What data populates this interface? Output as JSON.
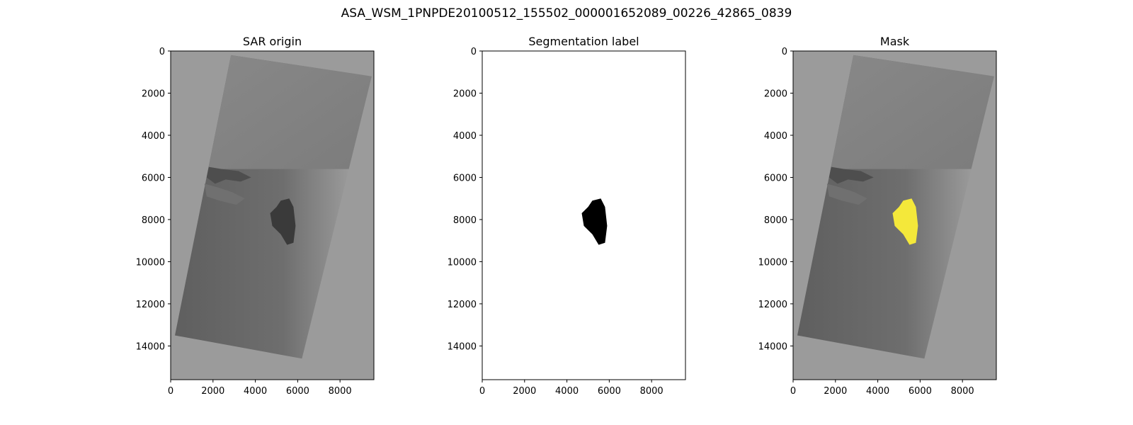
{
  "figure": {
    "title": "ASA_WSM_1PNPDE20100512_155502_000001652089_00226_42865_0839"
  },
  "colors": {
    "figure_background": "#ffffff",
    "image_background": "#9b9b9b",
    "swath_dark": "#646464",
    "swath_light": "#a6a6a6",
    "slick_on_sar": "#3a3a3a",
    "label_slick": "#000000",
    "mask_slick": "#f4e83a",
    "axis": "#000000"
  },
  "chart_data": [
    {
      "type": "heatmap",
      "title": "SAR origin",
      "image_kind": "sar_grayscale",
      "xlim": [
        0,
        9600
      ],
      "ylim": [
        15600,
        0
      ],
      "xticks": [
        0,
        2000,
        4000,
        6000,
        8000
      ],
      "yticks": [
        0,
        2000,
        4000,
        6000,
        8000,
        10000,
        12000,
        14000
      ],
      "swath_corners": [
        [
          2850,
          200
        ],
        [
          9500,
          1200
        ],
        [
          6200,
          14600
        ],
        [
          200,
          13500
        ]
      ],
      "coastline_y": 5600,
      "slick_region": [
        [
          5200,
          7100
        ],
        [
          5600,
          7000
        ],
        [
          5800,
          7400
        ],
        [
          5900,
          8300
        ],
        [
          5800,
          9100
        ],
        [
          5500,
          9200
        ],
        [
          5200,
          8700
        ],
        [
          4800,
          8300
        ],
        [
          4700,
          7700
        ],
        [
          5000,
          7400
        ]
      ]
    },
    {
      "type": "heatmap",
      "title": "Segmentation label",
      "image_kind": "binary_label",
      "xlim": [
        0,
        9600
      ],
      "ylim": [
        15600,
        0
      ],
      "xticks": [
        0,
        2000,
        4000,
        6000,
        8000
      ],
      "yticks": [
        0,
        2000,
        4000,
        6000,
        8000,
        10000,
        12000,
        14000
      ],
      "slick_region": [
        [
          5200,
          7100
        ],
        [
          5600,
          7000
        ],
        [
          5800,
          7400
        ],
        [
          5900,
          8300
        ],
        [
          5800,
          9100
        ],
        [
          5500,
          9200
        ],
        [
          5200,
          8700
        ],
        [
          4800,
          8300
        ],
        [
          4700,
          7700
        ],
        [
          5000,
          7400
        ]
      ]
    },
    {
      "type": "heatmap",
      "title": "Mask",
      "image_kind": "sar_with_overlay",
      "xlim": [
        0,
        9600
      ],
      "ylim": [
        15600,
        0
      ],
      "xticks": [
        0,
        2000,
        4000,
        6000,
        8000
      ],
      "yticks": [
        0,
        2000,
        4000,
        6000,
        8000,
        10000,
        12000,
        14000
      ],
      "swath_corners": [
        [
          2850,
          200
        ],
        [
          9500,
          1200
        ],
        [
          6200,
          14600
        ],
        [
          200,
          13500
        ]
      ],
      "coastline_y": 5600,
      "slick_region": [
        [
          5200,
          7100
        ],
        [
          5600,
          7000
        ],
        [
          5800,
          7400
        ],
        [
          5900,
          8300
        ],
        [
          5800,
          9100
        ],
        [
          5500,
          9200
        ],
        [
          5200,
          8700
        ],
        [
          4800,
          8300
        ],
        [
          4700,
          7700
        ],
        [
          5000,
          7400
        ]
      ]
    }
  ]
}
